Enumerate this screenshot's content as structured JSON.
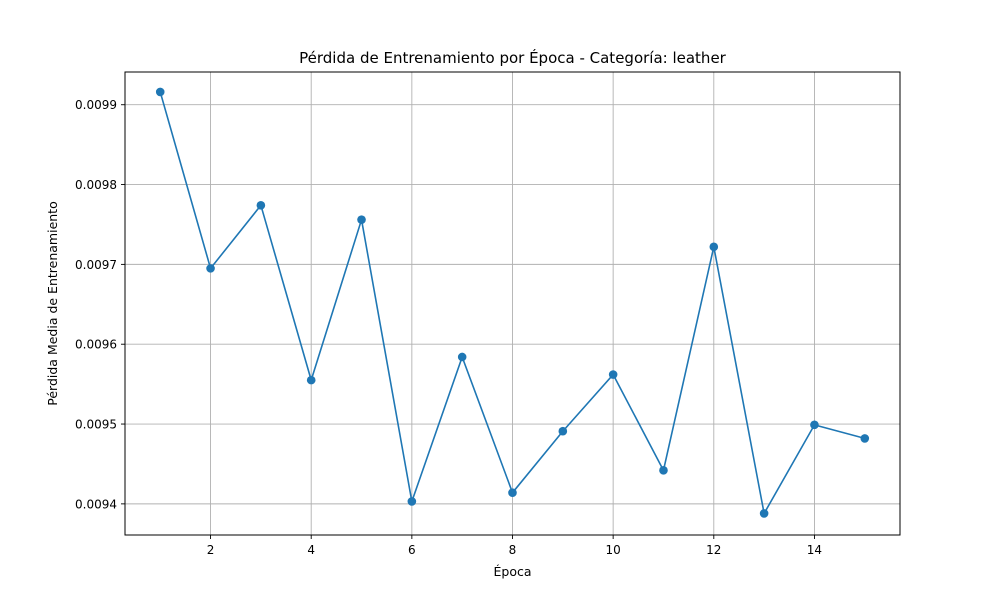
{
  "chart_data": {
    "type": "line",
    "title": "Pérdida de Entrenamiento por Época - Categoría: leather",
    "xlabel": "Época",
    "ylabel": "Pérdida Media de Entrenamiento",
    "x": [
      1,
      2,
      3,
      4,
      5,
      6,
      7,
      8,
      9,
      10,
      11,
      12,
      13,
      14,
      15
    ],
    "series": [
      {
        "values": [
          0.009916,
          0.009695,
          0.009774,
          0.009555,
          0.009756,
          0.009403,
          0.009584,
          0.009414,
          0.009491,
          0.009562,
          0.009442,
          0.009722,
          0.009388,
          0.009499,
          0.009482
        ]
      }
    ],
    "xlim": [
      0.3,
      15.7
    ],
    "ylim": [
      0.009361,
      0.009941
    ],
    "xticks": [
      2,
      4,
      6,
      8,
      10,
      12,
      14
    ],
    "xtick_labels": [
      "2",
      "4",
      "6",
      "8",
      "10",
      "12",
      "14"
    ],
    "yticks": [
      0.0094,
      0.0095,
      0.0096,
      0.0097,
      0.0098,
      0.0099
    ],
    "ytick_labels": [
      "0.0094",
      "0.0095",
      "0.0096",
      "0.0097",
      "0.0098",
      "0.0099"
    ],
    "grid": true,
    "marker": "circle",
    "line_color": "#1f77b4"
  }
}
